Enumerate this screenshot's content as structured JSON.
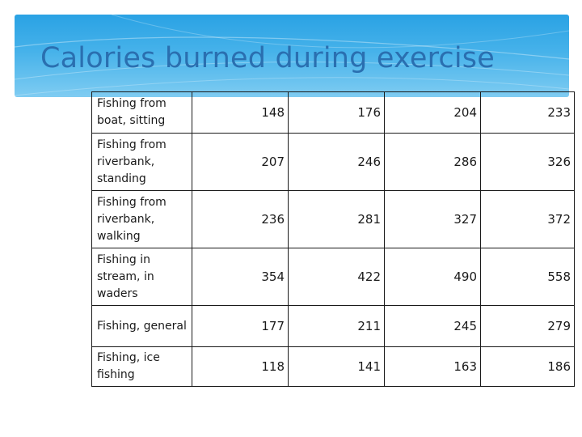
{
  "slide": {
    "title": "Calories burned during exercise"
  },
  "table": {
    "rows": [
      {
        "activity": "Fishing from boat, sitting",
        "values": [
          "148",
          "176",
          "204",
          "233"
        ]
      },
      {
        "activity": "Fishing from riverbank, standing",
        "values": [
          "207",
          "246",
          "286",
          "326"
        ]
      },
      {
        "activity": "Fishing from riverbank, walking",
        "values": [
          "236",
          "281",
          "327",
          "372"
        ]
      },
      {
        "activity": "Fishing in stream, in waders",
        "values": [
          "354",
          "422",
          "490",
          "558"
        ]
      },
      {
        "activity": "Fishing, general",
        "values": [
          "177",
          "211",
          "245",
          "279"
        ]
      },
      {
        "activity": "Fishing, ice fishing",
        "values": [
          "118",
          "141",
          "163",
          "186"
        ]
      }
    ]
  },
  "colors": {
    "header_band": "#3aa9e7",
    "title_text": "#2a6fb0",
    "table_border": "#1a1a1a"
  }
}
